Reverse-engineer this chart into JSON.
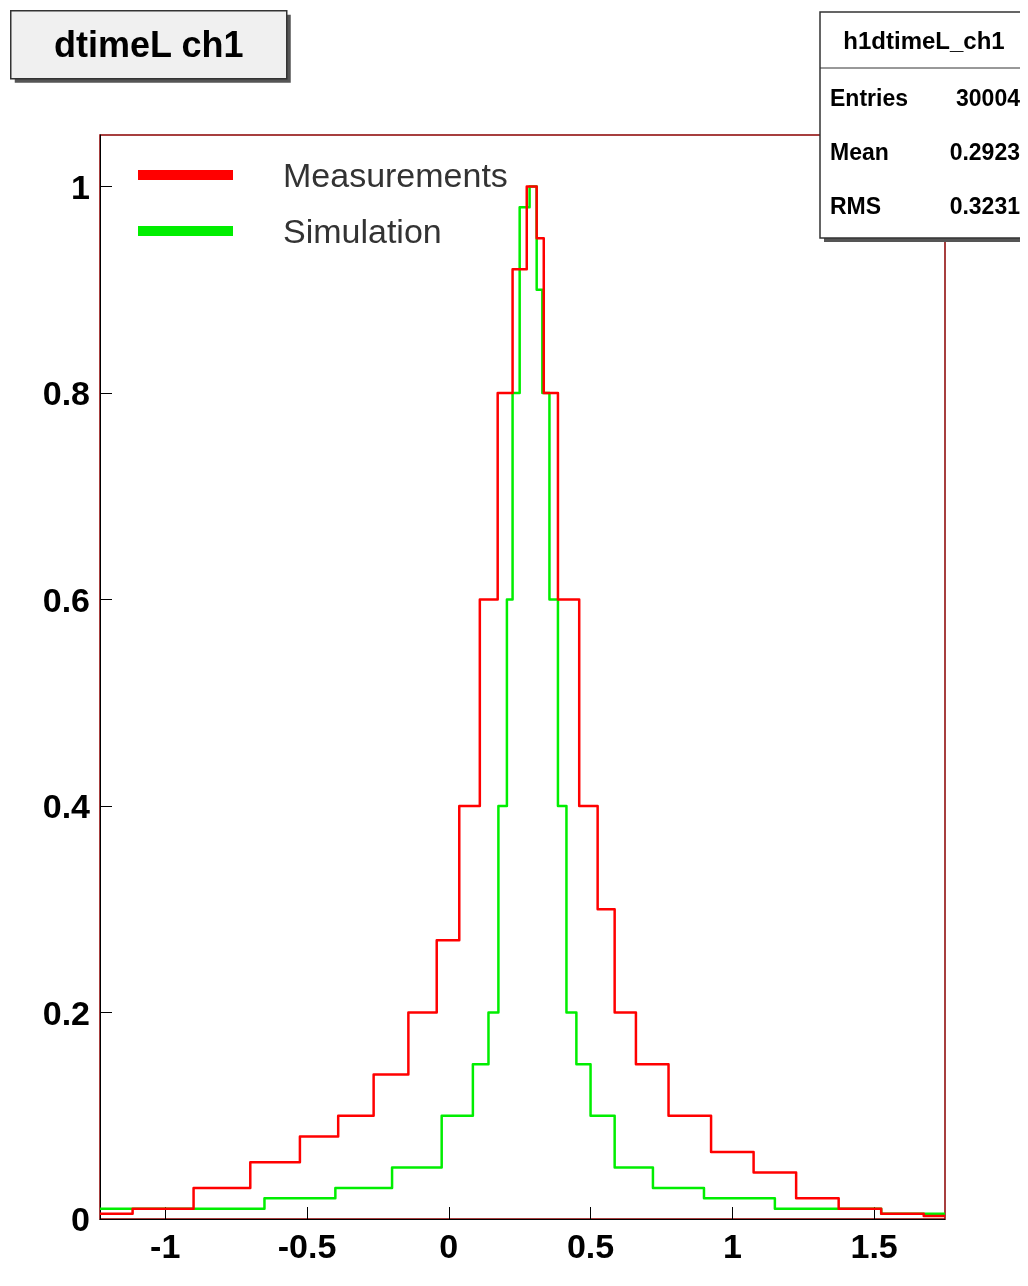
{
  "chart_data": {
    "type": "step",
    "title": "dtimeL ch1",
    "annotations": [
      "h1dtimeL_ch1",
      "Entries 30004",
      "Mean 0.2923",
      "RMS 0.3231"
    ],
    "series": [
      {
        "name": "Measurements",
        "color": "#ff0000",
        "x": [
          -1.23,
          -1.0,
          -0.8,
          -0.6,
          -0.45,
          -0.33,
          -0.2,
          -0.085,
          0,
          0.074,
          0.145,
          0.2,
          0.25,
          0.3,
          0.32,
          0.35,
          0.42,
          0.5,
          0.55,
          0.62,
          0.7,
          0.85,
          1.0,
          1.15,
          1.3,
          1.45,
          1.6,
          1.75
        ],
        "values": [
          0.005,
          0.01,
          0.03,
          0.055,
          0.08,
          0.1,
          0.14,
          0.2,
          0.27,
          0.4,
          0.6,
          0.8,
          0.92,
          1.0,
          0.95,
          0.8,
          0.6,
          0.4,
          0.3,
          0.2,
          0.15,
          0.1,
          0.065,
          0.045,
          0.02,
          0.01,
          0.005,
          0.003
        ]
      },
      {
        "name": "Simulation",
        "color": "#00ee00",
        "x": [
          -1.23,
          -0.8,
          -0.5,
          -0.3,
          -0.1,
          0.05,
          0.12,
          0.16,
          0.19,
          0.22,
          0.23,
          0.27,
          0.3,
          0.32,
          0.34,
          0.37,
          0.4,
          0.43,
          0.47,
          0.53,
          0.64,
          0.8,
          1.0,
          1.3,
          1.75
        ],
        "values": [
          0.01,
          0.01,
          0.02,
          0.03,
          0.05,
          0.1,
          0.15,
          0.2,
          0.4,
          0.6,
          0.8,
          0.98,
          1.0,
          0.9,
          0.8,
          0.6,
          0.4,
          0.2,
          0.15,
          0.1,
          0.05,
          0.03,
          0.02,
          0.01,
          0.005
        ]
      }
    ],
    "xlim": [
      -1.23,
      1.75
    ],
    "xticks": [
      -1,
      -0.5,
      0,
      0.5,
      1,
      1.5
    ],
    "ylim": [
      0,
      1.05
    ],
    "yticks": [
      0,
      0.2,
      0.4,
      0.6,
      0.8,
      1
    ],
    "grid": false,
    "legend": "top left",
    "marker": "none",
    "line_style": "solid"
  }
}
